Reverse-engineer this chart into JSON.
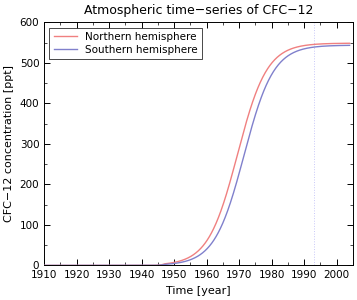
{
  "title": "Atmospheric time−series of CFC−12",
  "xlabel": "Time [year]",
  "ylabel": "CFC−12 concentration [ppt]",
  "xlim": [
    1910,
    2005
  ],
  "ylim": [
    0,
    600
  ],
  "xticks": [
    1910,
    1920,
    1930,
    1940,
    1950,
    1960,
    1970,
    1980,
    1990,
    2000
  ],
  "yticks": [
    0,
    100,
    200,
    300,
    400,
    500,
    600
  ],
  "northern_color": "#f08080",
  "southern_color": "#8080cc",
  "vertical_line_x": 1993,
  "vertical_line_color": "#c8c8f8",
  "background_color": "#ffffff",
  "legend_labels": [
    "Northern hemisphere",
    "Southern hemisphere"
  ],
  "figsize": [
    3.57,
    3.0
  ],
  "dpi": 100
}
